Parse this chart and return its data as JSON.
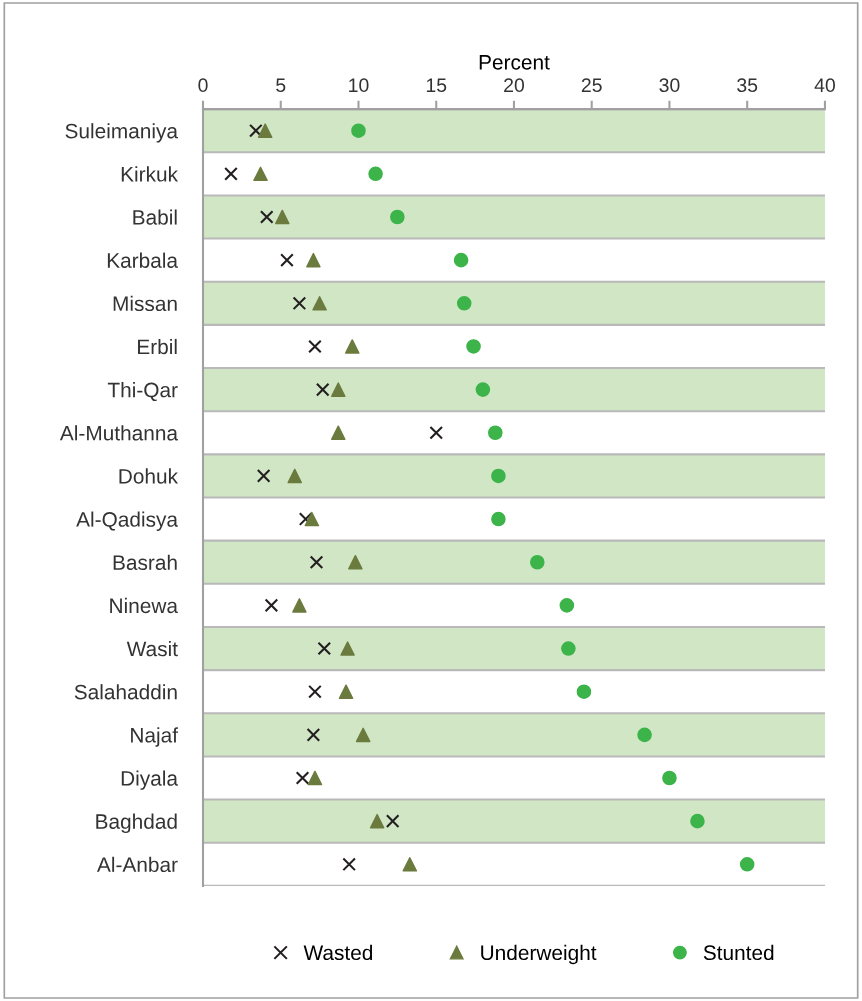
{
  "chart_data": {
    "type": "scatter",
    "xlabel": "Percent",
    "orientation": "horizontal",
    "categories": [
      "Suleimaniya",
      "Kirkuk",
      "Babil",
      "Karbala",
      "Missan",
      "Erbil",
      "Thi-Qar",
      "Al-Muthanna",
      "Dohuk",
      "Al-Qadisya",
      "Basrah",
      "Ninewa",
      "Wasit",
      "Salahaddin",
      "Najaf",
      "Diyala",
      "Baghdad",
      "Al-Anbar"
    ],
    "series": [
      {
        "name": "Wasted",
        "color": "#231f20",
        "marker": "cross",
        "values": [
          3.4,
          1.8,
          4.1,
          5.4,
          6.2,
          7.2,
          7.7,
          15.0,
          3.9,
          6.6,
          7.3,
          4.4,
          7.8,
          7.2,
          7.1,
          6.4,
          12.2,
          9.4
        ]
      },
      {
        "name": "Underweight",
        "color": "#6b7b3e",
        "marker": "triangle",
        "values": [
          4.0,
          3.7,
          5.1,
          7.1,
          7.5,
          9.6,
          8.7,
          8.7,
          5.9,
          7.0,
          9.8,
          6.2,
          9.3,
          9.2,
          10.3,
          7.2,
          11.2,
          13.3
        ]
      },
      {
        "name": "Stunted",
        "color": "#3cb44a",
        "marker": "circle",
        "values": [
          10.0,
          11.1,
          12.5,
          16.6,
          16.8,
          17.4,
          18.0,
          18.8,
          19.0,
          19.0,
          21.5,
          23.4,
          23.5,
          24.5,
          28.4,
          30.0,
          31.8,
          35.0
        ]
      }
    ],
    "xlim": [
      0,
      40
    ],
    "xticks": [
      0,
      5,
      10,
      15,
      20,
      25,
      30,
      35,
      40
    ],
    "legend": "bottom",
    "grid": false
  }
}
